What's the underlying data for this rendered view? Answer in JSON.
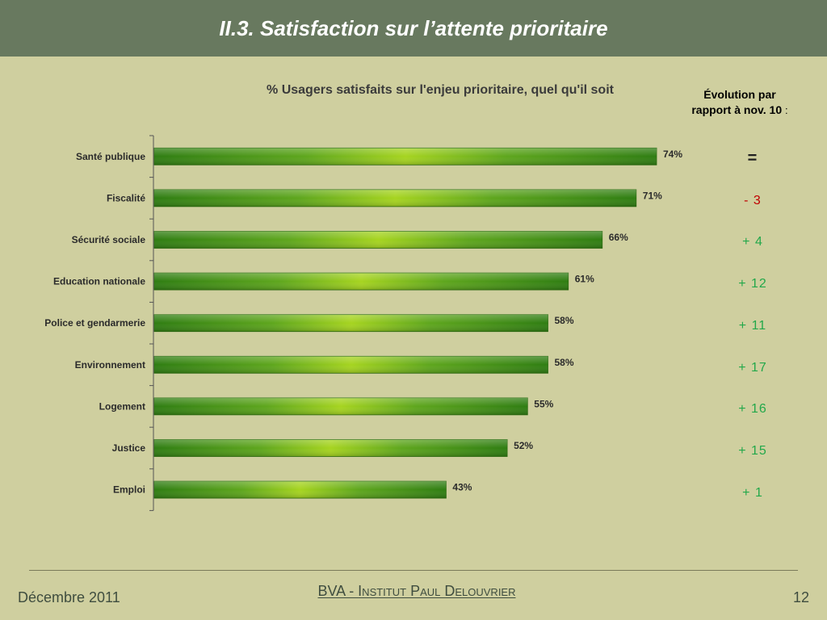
{
  "header": {
    "title": "II.3. Satisfaction sur l’attente prioritaire"
  },
  "evolution": {
    "header_line1": "Évolution par",
    "header_line2": "rapport à nov. 10",
    "header_colon": ":",
    "items": [
      {
        "text": "=",
        "color": "#1f1f1f"
      },
      {
        "text": "- 3",
        "color": "#c00000"
      },
      {
        "text": "+ 4",
        "color": "#22a84a"
      },
      {
        "text": "+ 12",
        "color": "#22a84a"
      },
      {
        "text": "+ 11",
        "color": "#22a84a"
      },
      {
        "text": "+ 17",
        "color": "#22a84a"
      },
      {
        "text": "+ 16",
        "color": "#22a84a"
      },
      {
        "text": "+ 15",
        "color": "#22a84a"
      },
      {
        "text": "+ 1",
        "color": "#22a84a"
      }
    ]
  },
  "chart_data": {
    "type": "bar",
    "orientation": "horizontal",
    "title": "% Usagers satisfaits sur l'enjeu prioritaire, quel qu'il soit",
    "categories": [
      "Santé publique",
      "Fiscalité",
      "Sécurité sociale",
      "Education nationale",
      "Police et gendarmerie",
      "Environnement",
      "Logement",
      "Justice",
      "Emploi"
    ],
    "values": [
      74,
      71,
      66,
      61,
      58,
      58,
      55,
      52,
      43
    ],
    "value_labels": [
      "74%",
      "71%",
      "66%",
      "61%",
      "58%",
      "58%",
      "55%",
      "52%",
      "43%"
    ],
    "xlim": [
      0,
      100
    ],
    "grid": false,
    "legend": false,
    "bar_color": "#4d9a16"
  },
  "footer": {
    "date": "Décembre 2011",
    "org": "BVA - Institut Paul Delouvrier",
    "page": "12"
  }
}
